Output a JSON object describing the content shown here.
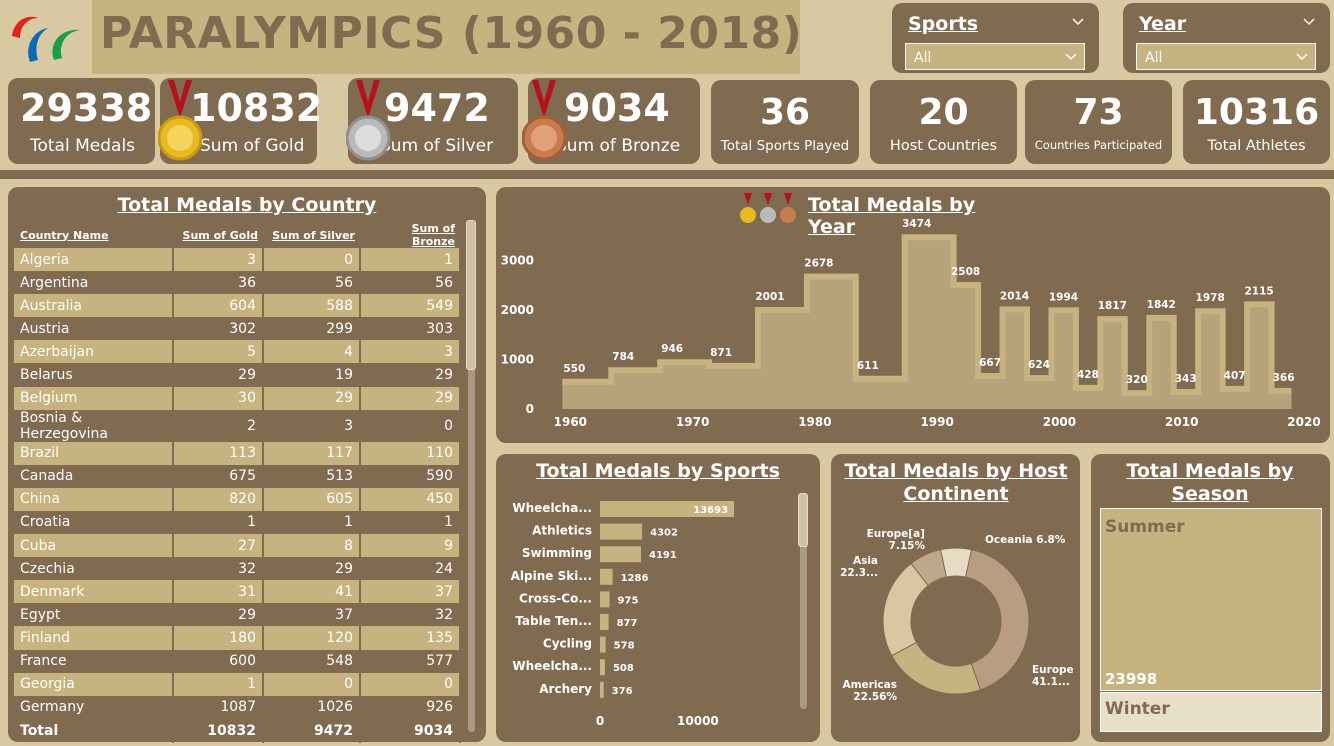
{
  "header": {
    "title": "PARALYMPICS (1960 - 2018)"
  },
  "slicers": [
    {
      "title": "Sports",
      "value": "All"
    },
    {
      "title": "Year",
      "value": "All"
    }
  ],
  "kpis": [
    {
      "value": "29338",
      "label": "Total Medals"
    },
    {
      "value": "10832",
      "label": "Sum of Gold",
      "medal": "gold"
    },
    {
      "value": "9472",
      "label": "Sum of Silver",
      "medal": "silver"
    },
    {
      "value": "9034",
      "label": "Sum of Bronze",
      "medal": "bronze"
    },
    {
      "value": "36",
      "label": "Total Sports Played"
    },
    {
      "value": "20",
      "label": "Host Countries"
    },
    {
      "value": "73",
      "label": "Countries Participated"
    },
    {
      "value": "10316",
      "label": "Total Athletes"
    }
  ],
  "country_table": {
    "title": "Total Medals by Country",
    "columns": [
      "Country Name",
      "Sum of Gold",
      "Sum of Silver",
      "Sum of Bronze"
    ],
    "rows": [
      [
        "Algeria",
        "3",
        "0",
        "1"
      ],
      [
        "Argentina",
        "36",
        "56",
        "56"
      ],
      [
        "Australia",
        "604",
        "588",
        "549"
      ],
      [
        "Austria",
        "302",
        "299",
        "303"
      ],
      [
        "Azerbaijan",
        "5",
        "4",
        "3"
      ],
      [
        "Belarus",
        "29",
        "19",
        "29"
      ],
      [
        "Belgium",
        "30",
        "29",
        "29"
      ],
      [
        "Bosnia & Herzegovina",
        "2",
        "3",
        "0"
      ],
      [
        "Brazil",
        "113",
        "117",
        "110"
      ],
      [
        "Canada",
        "675",
        "513",
        "590"
      ],
      [
        "China",
        "820",
        "605",
        "450"
      ],
      [
        "Croatia",
        "1",
        "1",
        "1"
      ],
      [
        "Cuba",
        "27",
        "8",
        "9"
      ],
      [
        "Czechia",
        "32",
        "29",
        "24"
      ],
      [
        "Denmark",
        "31",
        "41",
        "37"
      ],
      [
        "Egypt",
        "29",
        "37",
        "32"
      ],
      [
        "Finland",
        "180",
        "120",
        "135"
      ],
      [
        "France",
        "600",
        "548",
        "577"
      ],
      [
        "Georgia",
        "1",
        "0",
        "0"
      ],
      [
        "Germany",
        "1087",
        "1026",
        "926"
      ]
    ],
    "total": [
      "Total",
      "10832",
      "9472",
      "9034"
    ]
  },
  "chart_data": [
    {
      "type": "area",
      "title": "Total Medals by Year",
      "x": [
        1960,
        1964,
        1968,
        1972,
        1976,
        1980,
        1984,
        1988,
        1992,
        1994,
        1996,
        1998,
        2000,
        2002,
        2004,
        2006,
        2008,
        2010,
        2012,
        2014,
        2016,
        2018
      ],
      "values": [
        550,
        784,
        946,
        871,
        2001,
        2678,
        611,
        3474,
        2508,
        667,
        2014,
        624,
        1994,
        428,
        1817,
        320,
        1842,
        343,
        1978,
        407,
        2115,
        366
      ],
      "xticks": [
        "1960",
        "1970",
        "1980",
        "1990",
        "2000",
        "2010",
        "2020"
      ],
      "yticks": [
        "0",
        "1000",
        "2000",
        "3000"
      ],
      "xlim": [
        1958.5,
        2020
      ],
      "ylim": [
        0,
        3600
      ],
      "grid": false
    },
    {
      "type": "bar",
      "title": "Total Medals by Sports",
      "categories": [
        "Wheelcha...",
        "Athletics",
        "Swimming",
        "Alpine Ski...",
        "Cross-Co...",
        "Table Ten...",
        "Cycling",
        "Wheelcha...",
        "Archery"
      ],
      "values": [
        13693,
        4302,
        4191,
        1286,
        975,
        877,
        578,
        508,
        376
      ],
      "xticks": [
        "0",
        "10000"
      ],
      "xlim": [
        0,
        19000
      ],
      "grid": false
    },
    {
      "type": "pie",
      "title": "Total Medals by Host Continent",
      "categories": [
        "Europe",
        "Americas",
        "Asia",
        "Europe[a]",
        "Oceania"
      ],
      "values": [
        41.1,
        22.56,
        22.3,
        7.15,
        6.8
      ],
      "labels": [
        {
          "name": "Europe",
          "value": "41.1..."
        },
        {
          "name": "Americas",
          "value": "22.56%"
        },
        {
          "name": "Asia",
          "value": "22.3..."
        },
        {
          "name": "Europe[a]",
          "value": "7.15%"
        },
        {
          "name": "Oceania",
          "value": "6.8%"
        }
      ],
      "colors": [
        "#b89d80",
        "#c7b380",
        "#d8c7a2",
        "#bfa88a",
        "#e6dcc4"
      ]
    },
    {
      "type": "treemap",
      "title": "Total Medals by Season",
      "categories": [
        "Summer",
        "Winter"
      ],
      "values": [
        23998,
        5340
      ],
      "labels": [
        "Summer",
        "Winter"
      ],
      "value_labels": [
        "23998",
        ""
      ]
    }
  ],
  "colors": {
    "background": "#d9c9a3",
    "panel": "#806a50",
    "accent": "#c7b380",
    "light": "#e8dfc8"
  }
}
